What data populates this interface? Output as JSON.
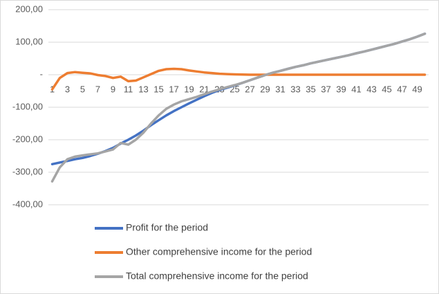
{
  "chart_data": {
    "type": "line",
    "categories": [
      1,
      null,
      3,
      null,
      5,
      null,
      7,
      null,
      9,
      null,
      11,
      null,
      13,
      null,
      15,
      null,
      17,
      null,
      19,
      null,
      21,
      null,
      23,
      null,
      25,
      null,
      27,
      null,
      29,
      null,
      31,
      null,
      33,
      null,
      35,
      null,
      37,
      null,
      39,
      null,
      41,
      null,
      43,
      null,
      45,
      null,
      47,
      null,
      49,
      null
    ],
    "series": [
      {
        "name": "Profit for the period",
        "color": "#4472c4",
        "values": [
          -275,
          -270,
          -265,
          -260,
          -256,
          -250,
          -243,
          -235,
          -225,
          -212,
          -200,
          -187,
          -172,
          -155,
          -140,
          -125,
          -112,
          -100,
          -88,
          -77,
          -66,
          -56,
          -47,
          -40,
          -33,
          -25,
          -17,
          -9,
          -1,
          6,
          12,
          18,
          24,
          29,
          35,
          40,
          45,
          50,
          55,
          60,
          66,
          71,
          77,
          83,
          89,
          95,
          102,
          109,
          117,
          126
        ]
      },
      {
        "name": "Other comprehensive income for the period",
        "color": "#ed7d31",
        "values": [
          -45,
          -10,
          5,
          8,
          6,
          4,
          -1,
          -4,
          -10,
          -6,
          -20,
          -18,
          -8,
          2,
          12,
          17,
          18,
          17,
          13,
          10,
          7,
          5,
          3,
          2,
          1,
          0.5,
          0,
          0,
          0,
          0,
          0,
          0,
          0,
          0,
          0,
          0,
          0,
          0,
          0,
          0,
          0,
          0,
          0,
          0,
          0,
          0,
          0,
          0,
          0,
          0
        ]
      },
      {
        "name": "Total comprehensive income for the period",
        "color": "#a5a5a5",
        "values": [
          -328,
          -285,
          -260,
          -252,
          -248,
          -245,
          -242,
          -236,
          -230,
          -210,
          -215,
          -200,
          -178,
          -150,
          -125,
          -105,
          -92,
          -82,
          -75,
          -68,
          -60,
          -52,
          -45,
          -38,
          -32,
          -25,
          -17,
          -9,
          -1,
          6,
          12,
          18,
          24,
          29,
          35,
          40,
          45,
          50,
          55,
          60,
          66,
          71,
          77,
          83,
          89,
          95,
          102,
          109,
          117,
          126
        ]
      }
    ],
    "ylim": [
      -400,
      200
    ],
    "yticks": [
      {
        "value": -400,
        "label": "-400,00"
      },
      {
        "value": -300,
        "label": "-300,00"
      },
      {
        "value": -200,
        "label": "-200,00"
      },
      {
        "value": -100,
        "label": "-100,00"
      },
      {
        "value": 0,
        "label": "-"
      },
      {
        "value": 100,
        "label": "100,00"
      },
      {
        "value": 200,
        "label": "200,00"
      }
    ],
    "grid": true,
    "legend": "bottom"
  }
}
